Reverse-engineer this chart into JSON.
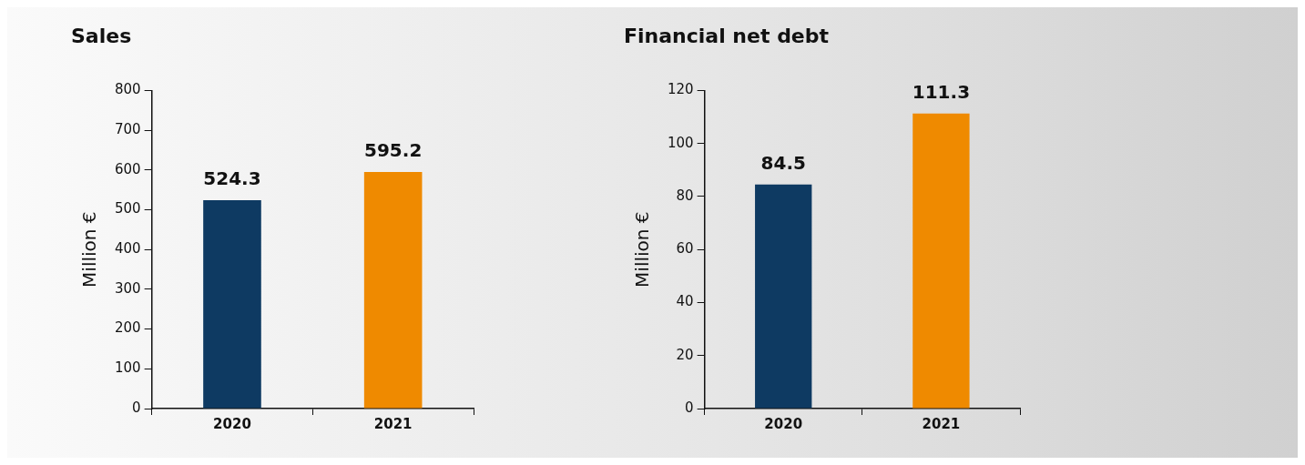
{
  "chart_data": [
    {
      "type": "bar",
      "title": "Sales",
      "ylabel": "Million €",
      "categories": [
        "2020",
        "2021"
      ],
      "values": [
        524.3,
        595.2
      ],
      "colors": [
        "#0e3a62",
        "#ef8a00"
      ],
      "ylim": [
        0,
        800
      ],
      "yticks": [
        0,
        100,
        200,
        300,
        400,
        500,
        600,
        700,
        800
      ],
      "data_labels": true,
      "grid": false,
      "legend": false
    },
    {
      "type": "bar",
      "title": "Financial net debt",
      "ylabel": "Million €",
      "categories": [
        "2020",
        "2021"
      ],
      "values": [
        84.5,
        111.3
      ],
      "colors": [
        "#0e3a62",
        "#ef8a00"
      ],
      "ylim": [
        0,
        120
      ],
      "yticks": [
        0,
        20,
        40,
        60,
        80,
        100,
        120
      ],
      "data_labels": true,
      "grid": false,
      "legend": false
    }
  ]
}
